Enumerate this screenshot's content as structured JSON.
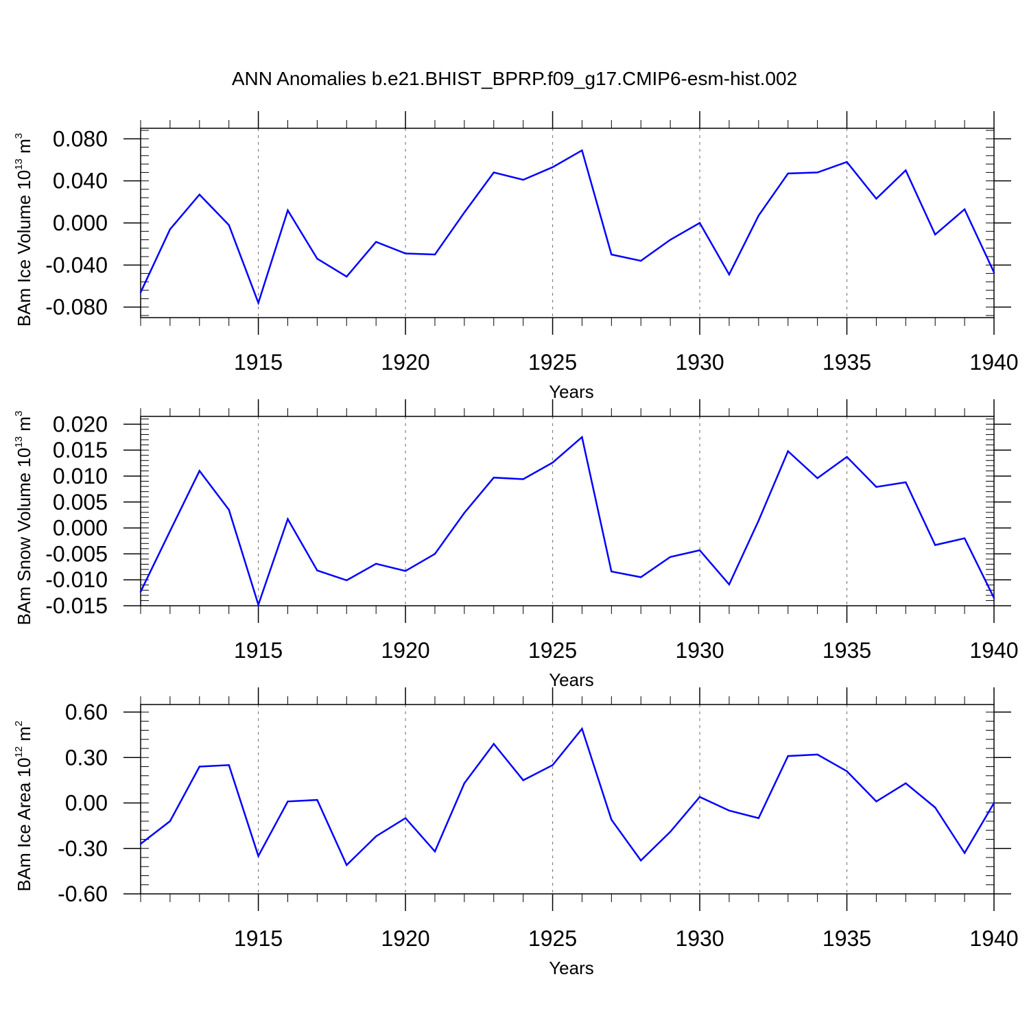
{
  "title": "ANN Anomalies b.e21.BHIST_BPRP.f09_g17.CMIP6-esm-hist.002",
  "colors": {
    "line": "#0000ff",
    "axis": "#000000",
    "grid": "#808080",
    "background": "#ffffff"
  },
  "chart_data": [
    {
      "type": "line",
      "ylabel": {
        "main": "BAm Ice Volume 10",
        "exp": "13",
        "unit": " m",
        "unit_exp": "3"
      },
      "xlabel": "Years",
      "xlim": [
        1911,
        1940
      ],
      "ylim": [
        -0.09,
        0.09
      ],
      "yticks": [
        -0.08,
        -0.04,
        0.0,
        0.04,
        0.08
      ],
      "ytick_labels": [
        "-0.080",
        "-0.040",
        "0.000",
        "0.040",
        "0.080"
      ],
      "yminor_step": 0.008,
      "xticks": [
        1915,
        1920,
        1925,
        1930,
        1935,
        1940
      ],
      "xtick_labels": [
        "1915",
        "1920",
        "1925",
        "1930",
        "1935",
        "1940"
      ],
      "grid_x": [
        1915,
        1920,
        1925,
        1930,
        1935
      ],
      "x": [
        1911,
        1912,
        1913,
        1914,
        1915,
        1916,
        1917,
        1918,
        1919,
        1920,
        1921,
        1922,
        1923,
        1924,
        1925,
        1926,
        1927,
        1928,
        1929,
        1930,
        1931,
        1932,
        1933,
        1934,
        1935,
        1936,
        1937,
        1938,
        1939,
        1940
      ],
      "values": [
        -0.066,
        -0.006,
        0.027,
        -0.002,
        -0.076,
        0.012,
        -0.034,
        -0.051,
        -0.018,
        -0.029,
        -0.03,
        0.01,
        0.048,
        0.041,
        0.053,
        0.069,
        -0.03,
        -0.036,
        -0.016,
        0.0,
        -0.049,
        0.007,
        0.047,
        0.048,
        0.058,
        0.023,
        0.05,
        -0.011,
        0.013,
        -0.047
      ]
    },
    {
      "type": "line",
      "ylabel": {
        "main": "BAm Snow Volume 10",
        "exp": "13",
        "unit": " m",
        "unit_exp": "3"
      },
      "xlabel": "Years",
      "xlim": [
        1911,
        1940
      ],
      "ylim": [
        -0.015,
        0.0215
      ],
      "yticks": [
        -0.015,
        -0.01,
        -0.005,
        0.0,
        0.005,
        0.01,
        0.015,
        0.02
      ],
      "ytick_labels": [
        "-0.015",
        "-0.010",
        "-0.005",
        "0.000",
        "0.005",
        "0.010",
        "0.015",
        "0.020"
      ],
      "yminor_step": 0.001,
      "xticks": [
        1915,
        1920,
        1925,
        1930,
        1935,
        1940
      ],
      "xtick_labels": [
        "1915",
        "1920",
        "1925",
        "1930",
        "1935",
        "1940"
      ],
      "grid_x": [
        1915,
        1920,
        1925,
        1930,
        1935
      ],
      "x": [
        1911,
        1912,
        1913,
        1914,
        1915,
        1916,
        1917,
        1918,
        1919,
        1920,
        1921,
        1922,
        1923,
        1924,
        1925,
        1926,
        1927,
        1928,
        1929,
        1930,
        1931,
        1932,
        1933,
        1934,
        1935,
        1936,
        1937,
        1938,
        1939,
        1940
      ],
      "values": [
        -0.0123,
        -0.0006,
        0.011,
        0.0035,
        -0.0148,
        0.0017,
        -0.0082,
        -0.0101,
        -0.0069,
        -0.0083,
        -0.005,
        0.0029,
        0.0097,
        0.0094,
        0.0126,
        0.0175,
        -0.0084,
        -0.0095,
        -0.0056,
        -0.0043,
        -0.0109,
        0.0014,
        0.0148,
        0.0096,
        0.0137,
        0.0079,
        0.0088,
        -0.0033,
        -0.002,
        -0.0135
      ]
    },
    {
      "type": "line",
      "ylabel": {
        "main": "BAm Ice Area 10",
        "exp": "12",
        "unit": " m",
        "unit_exp": "2"
      },
      "xlabel": "Years",
      "xlim": [
        1911,
        1940
      ],
      "ylim": [
        -0.6,
        0.65
      ],
      "yticks": [
        -0.6,
        -0.3,
        0.0,
        0.3,
        0.6
      ],
      "ytick_labels": [
        "-0.60",
        "-0.30",
        "0.00",
        "0.30",
        "0.60"
      ],
      "yminor_step": 0.06,
      "xticks": [
        1915,
        1920,
        1925,
        1930,
        1935,
        1940
      ],
      "xtick_labels": [
        "1915",
        "1920",
        "1925",
        "1930",
        "1935",
        "1940"
      ],
      "grid_x": [
        1915,
        1920,
        1925,
        1930,
        1935
      ],
      "x": [
        1911,
        1912,
        1913,
        1914,
        1915,
        1916,
        1917,
        1918,
        1919,
        1920,
        1921,
        1922,
        1923,
        1924,
        1925,
        1926,
        1927,
        1928,
        1929,
        1930,
        1931,
        1932,
        1933,
        1934,
        1935,
        1936,
        1937,
        1938,
        1939,
        1940
      ],
      "values": [
        -0.27,
        -0.12,
        0.24,
        0.25,
        -0.35,
        0.01,
        0.02,
        -0.41,
        -0.22,
        -0.1,
        -0.32,
        0.13,
        0.39,
        0.15,
        0.25,
        0.49,
        -0.11,
        -0.38,
        -0.19,
        0.04,
        -0.05,
        -0.1,
        0.31,
        0.32,
        0.21,
        0.01,
        0.13,
        -0.03,
        -0.33,
        0.0
      ]
    }
  ]
}
